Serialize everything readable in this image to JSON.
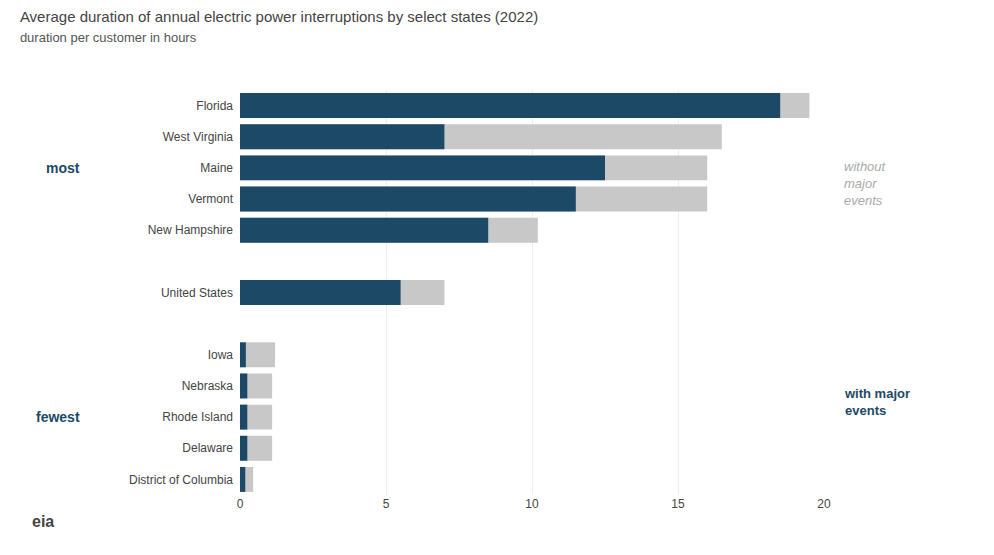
{
  "chart_data": {
    "type": "bar",
    "orientation": "horizontal",
    "title": "Average duration of annual electric power interruptions by select states (2022)",
    "subtitle": "duration per customer in hours",
    "categories": [
      "Florida",
      "West Virginia",
      "Maine",
      "Vermont",
      "New Hampshire",
      null,
      "United States",
      null,
      "Iowa",
      "Nebraska",
      "Rhode Island",
      "Delaware",
      "District of Columbia"
    ],
    "series": [
      {
        "color": "#c8c8c8",
        "values": [
          19.5,
          16.5,
          16.0,
          16.0,
          10.2,
          null,
          7.0,
          null,
          1.2,
          1.1,
          1.1,
          1.1,
          0.45
        ]
      },
      {
        "color": "#1c4966",
        "values": [
          18.5,
          7.0,
          12.5,
          11.5,
          8.5,
          null,
          5.5,
          null,
          0.2,
          0.25,
          0.25,
          0.25,
          0.18
        ]
      }
    ],
    "xlim": [
      0,
      20
    ],
    "xticks": [
      0,
      5,
      10,
      15,
      20
    ],
    "grid": true,
    "annotations": [
      {
        "text": "most",
        "color": "#1c4966"
      },
      {
        "text": "fewest",
        "color": "#1c4966"
      },
      {
        "text": "without\nmajor\nevents",
        "color": "#aaaaaa"
      },
      {
        "text": "with major\nevents",
        "color": "#1c4966"
      },
      {
        "text": "eia"
      }
    ]
  }
}
